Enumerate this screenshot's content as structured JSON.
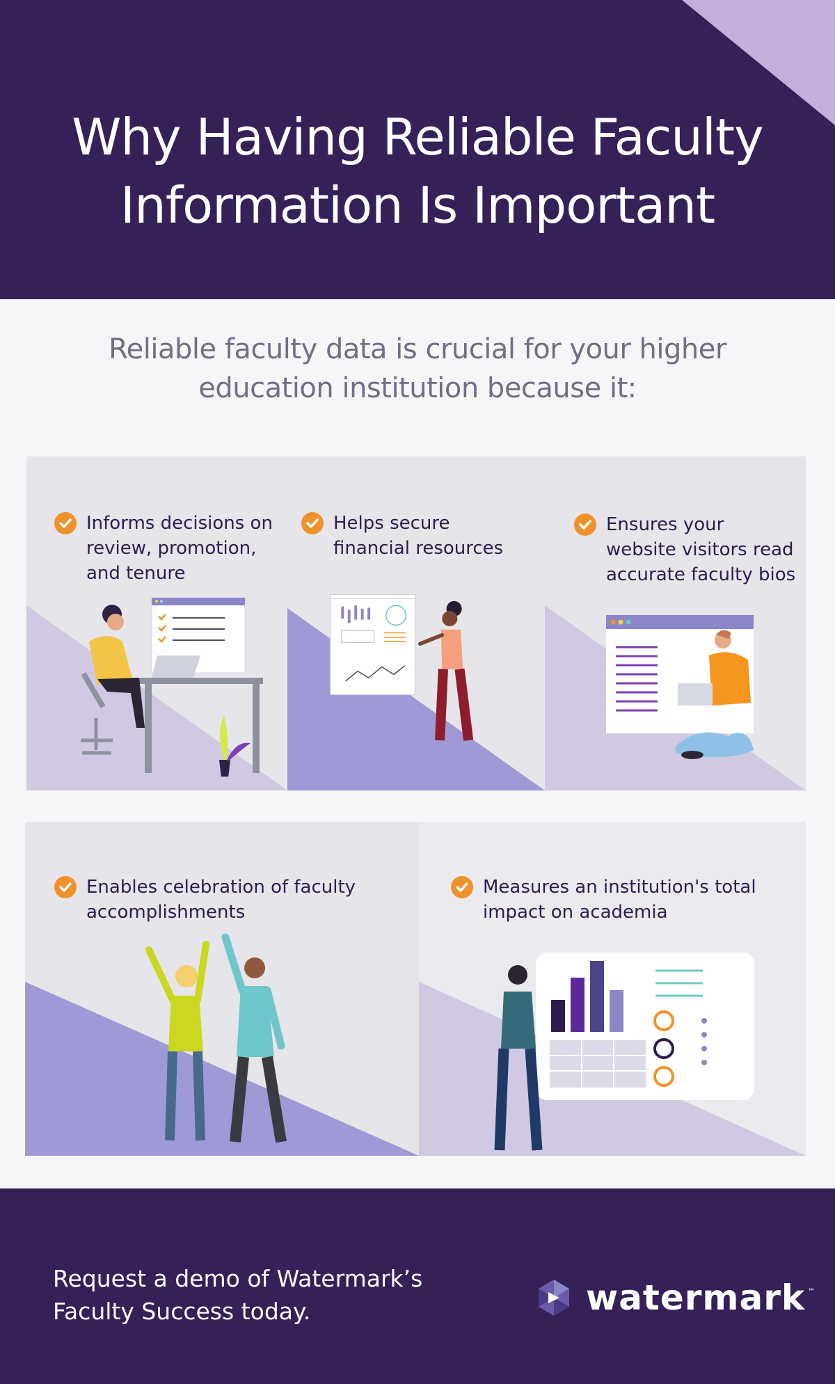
{
  "header": {
    "title": "Why Having Reliable Faculty Information Is Important"
  },
  "intro": {
    "text": "Reliable faculty data is crucial for your higher education institution because it:"
  },
  "benefits": [
    {
      "label": "Informs decisions on review, promotion, and tenure"
    },
    {
      "label": "Helps secure financial resources"
    },
    {
      "label": "Ensures your website visitors read accurate faculty bios"
    },
    {
      "label": "Enables celebration of faculty accomplishments"
    },
    {
      "label": "Measures an institution's total impact on academia"
    }
  ],
  "footer": {
    "cta": "Request a demo of Watermark’s Faculty Success today.",
    "brand": "watermark",
    "trademark": "™"
  },
  "colors": {
    "primary": "#352058",
    "accent": "#f0922b",
    "lavender": "#c2afdc",
    "periwinkle": "#9f9ad6"
  }
}
